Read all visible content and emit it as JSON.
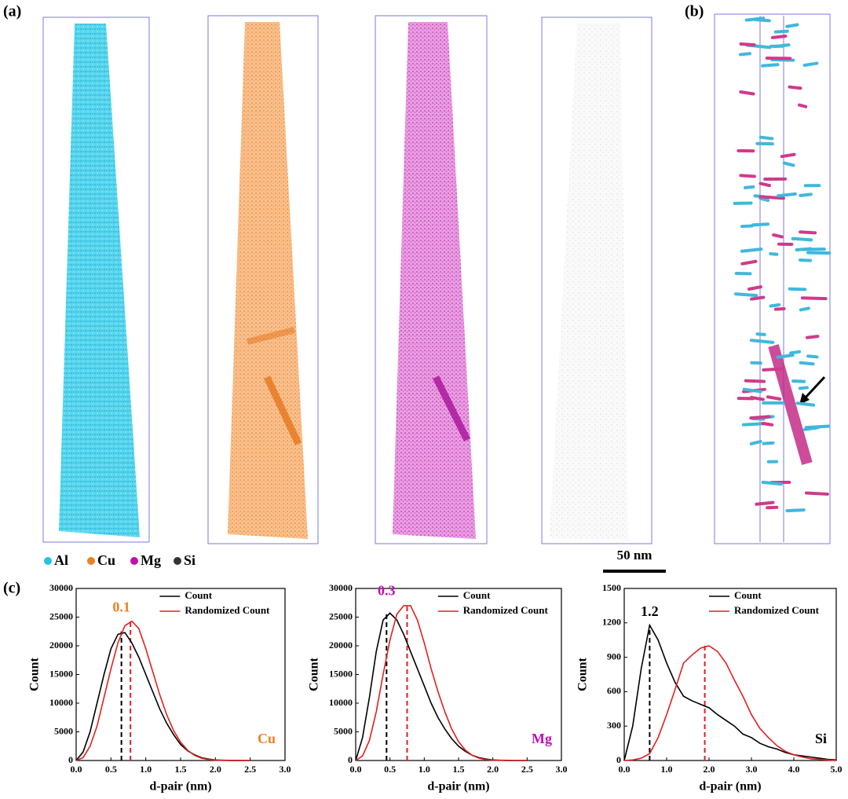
{
  "panel_labels": [
    "(a)",
    "(b)",
    "(c)"
  ],
  "atom_legend": [
    {
      "name": "Al",
      "color": "#22c4e0"
    },
    {
      "name": "Cu",
      "color": "#f08020"
    },
    {
      "name": "Mg",
      "color": "#c010b0"
    },
    {
      "name": "Si",
      "color": "#333333"
    }
  ],
  "scale_bar": "50 nm",
  "chart_data": [
    {
      "type": "line",
      "xlabel": "d-pair (nm)",
      "ylabel": "Count",
      "annotation": "0.1",
      "annotation_color": "#f08020",
      "element_label": "Cu",
      "element_color": "#f08020",
      "legend": "upper right",
      "x": [
        0,
        0.1,
        0.2,
        0.3,
        0.4,
        0.5,
        0.6,
        0.7,
        0.8,
        0.9,
        1.0,
        1.1,
        1.2,
        1.3,
        1.4,
        1.5,
        1.6,
        1.7,
        1.8,
        1.9,
        2.0,
        2.1,
        2.2,
        2.3,
        2.4,
        2.5
      ],
      "series": [
        {
          "name": "Count",
          "color": "#000000",
          "values": [
            0,
            1500,
            5000,
            10000,
            15000,
            19500,
            22000,
            22300,
            20500,
            18000,
            15000,
            12000,
            9000,
            6500,
            4500,
            2800,
            1700,
            1000,
            500,
            250,
            100,
            50,
            20,
            10,
            0,
            0
          ]
        },
        {
          "name": "Randomized Count",
          "color": "#e02020",
          "values": [
            0,
            500,
            2500,
            6000,
            11000,
            16000,
            20500,
            23500,
            24300,
            23000,
            19500,
            15500,
            11500,
            8000,
            5200,
            3200,
            1800,
            900,
            400,
            180,
            80,
            30,
            10,
            0,
            0,
            0
          ]
        }
      ],
      "peak_lines": [
        {
          "x": 0.65,
          "y": 22500,
          "color": "#000000"
        },
        {
          "x": 0.78,
          "y": 24300,
          "color": "#e02020"
        }
      ],
      "xlim": [
        0,
        3
      ],
      "ylim": [
        0,
        30000
      ],
      "xticks": [
        {
          "value": 0,
          "label": "0.0"
        },
        0.5,
        {
          "value": 1,
          "label": "1.0"
        },
        1.5,
        {
          "value": 2,
          "label": "2.0"
        },
        2.5,
        {
          "value": 3,
          "label": "3.0"
        }
      ],
      "yticks": [
        0,
        5000,
        10000,
        15000,
        20000,
        25000,
        30000
      ]
    },
    {
      "type": "line",
      "xlabel": "d-pair (nm)",
      "ylabel": "Count",
      "annotation": "0.3",
      "annotation_color": "#c010b0",
      "element_label": "Mg",
      "element_color": "#c010b0",
      "legend": "upper right",
      "x": [
        0,
        0.1,
        0.2,
        0.3,
        0.4,
        0.5,
        0.6,
        0.7,
        0.8,
        0.9,
        1.0,
        1.1,
        1.2,
        1.3,
        1.4,
        1.5,
        1.6,
        1.7,
        1.8,
        1.9,
        2.0,
        2.1,
        2.2,
        2.3,
        2.4,
        2.5
      ],
      "series": [
        {
          "name": "Count",
          "color": "#000000",
          "values": [
            0,
            4000,
            11000,
            19000,
            24500,
            25700,
            24500,
            22000,
            19000,
            16000,
            13000,
            10000,
            7500,
            5500,
            3800,
            2500,
            1600,
            900,
            500,
            250,
            100,
            50,
            20,
            0,
            0,
            0
          ]
        },
        {
          "name": "Randomized Count",
          "color": "#e02020",
          "values": [
            0,
            800,
            3500,
            8500,
            15000,
            21000,
            25500,
            27000,
            27000,
            24500,
            20500,
            16000,
            12000,
            8500,
            5500,
            3300,
            1800,
            900,
            400,
            150,
            60,
            20,
            0,
            0,
            0,
            0
          ]
        }
      ],
      "peak_lines": [
        {
          "x": 0.45,
          "y": 25800,
          "color": "#000000"
        },
        {
          "x": 0.75,
          "y": 27200,
          "color": "#e02020"
        }
      ],
      "xlim": [
        0,
        3
      ],
      "ylim": [
        0,
        30000
      ],
      "xticks": [
        {
          "value": 0,
          "label": "0.0"
        },
        0.5,
        {
          "value": 1,
          "label": "1.0"
        },
        1.5,
        {
          "value": 2,
          "label": "2.0"
        },
        2.5,
        {
          "value": 3,
          "label": "3.0"
        }
      ],
      "yticks": [
        0,
        5000,
        10000,
        15000,
        20000,
        25000,
        30000
      ]
    },
    {
      "type": "line",
      "xlabel": "d-pair (nm)",
      "ylabel": "Count",
      "annotation": "1.2",
      "annotation_color": "#000000",
      "element_label": "Si",
      "element_color": "#000000",
      "legend": "upper right",
      "x": [
        0,
        0.2,
        0.4,
        0.6,
        0.8,
        1.0,
        1.2,
        1.4,
        1.6,
        1.8,
        2.0,
        2.2,
        2.4,
        2.6,
        2.8,
        3.0,
        3.2,
        3.4,
        3.6,
        3.8,
        4.0,
        4.2,
        4.4,
        4.6,
        4.8,
        5.0
      ],
      "series": [
        {
          "name": "Count",
          "color": "#000000",
          "values": [
            0,
            300,
            800,
            1180,
            1050,
            850,
            680,
            560,
            520,
            490,
            460,
            400,
            350,
            300,
            230,
            200,
            150,
            120,
            100,
            70,
            50,
            40,
            30,
            20,
            10,
            5
          ]
        },
        {
          "name": "Randomized Count",
          "color": "#e02020",
          "values": [
            0,
            5,
            20,
            60,
            200,
            400,
            620,
            850,
            920,
            980,
            1000,
            950,
            850,
            700,
            560,
            400,
            280,
            200,
            130,
            80,
            50,
            30,
            15,
            10,
            5,
            0
          ]
        }
      ],
      "peak_lines": [
        {
          "x": 0.6,
          "y": 1180,
          "color": "#000000"
        },
        {
          "x": 1.9,
          "y": 1000,
          "color": "#e02020"
        }
      ],
      "xlim": [
        0,
        5
      ],
      "ylim": [
        0,
        1500
      ],
      "xticks": [
        {
          "value": 0,
          "label": "0.0"
        },
        {
          "value": 1,
          "label": "1.0"
        },
        {
          "value": 2,
          "label": "2.0"
        },
        {
          "value": 3,
          "label": "3.0"
        },
        {
          "value": 4,
          "label": "4.0"
        },
        {
          "value": 5,
          "label": "5.0"
        }
      ],
      "yticks": [
        0,
        300,
        600,
        900,
        1200,
        1500
      ]
    }
  ]
}
